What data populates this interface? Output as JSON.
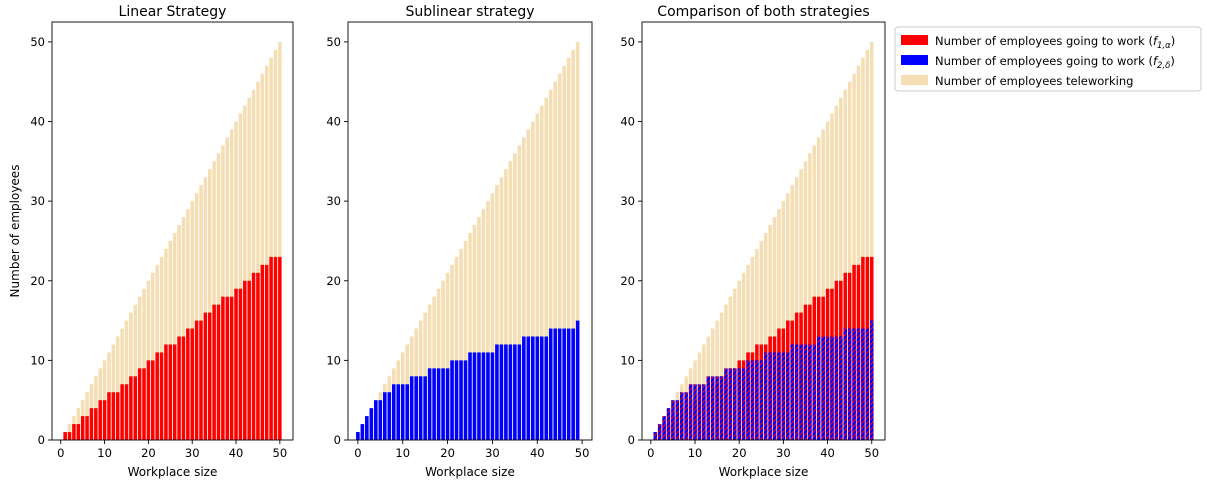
{
  "chart_data": [
    {
      "type": "bar",
      "title": "Linear Strategy",
      "xlabel": "Workplace size",
      "ylabel": "Number of employees",
      "xlim": [
        -2,
        53
      ],
      "ylim": [
        0,
        52.5
      ],
      "xticks": [
        0,
        10,
        20,
        30,
        40,
        50
      ],
      "yticks": [
        0,
        10,
        20,
        30,
        40,
        50
      ],
      "x": [
        1,
        2,
        3,
        4,
        5,
        6,
        7,
        8,
        9,
        10,
        11,
        12,
        13,
        14,
        15,
        16,
        17,
        18,
        19,
        20,
        21,
        22,
        23,
        24,
        25,
        26,
        27,
        28,
        29,
        30,
        31,
        32,
        33,
        34,
        35,
        36,
        37,
        38,
        39,
        40,
        41,
        42,
        43,
        44,
        45,
        46,
        47,
        48,
        49,
        50
      ],
      "series": [
        {
          "name": "Number of employees teleworking",
          "color": "#f5deb3",
          "stacked_total": true,
          "values": [
            1,
            2,
            3,
            4,
            5,
            6,
            7,
            8,
            9,
            10,
            11,
            12,
            13,
            14,
            15,
            16,
            17,
            18,
            19,
            20,
            21,
            22,
            23,
            24,
            25,
            26,
            27,
            28,
            29,
            30,
            31,
            32,
            33,
            34,
            35,
            36,
            37,
            38,
            39,
            40,
            41,
            42,
            43,
            44,
            45,
            46,
            47,
            48,
            49,
            50
          ]
        },
        {
          "name": "Number of employees going to work (f1,α)",
          "color": "#ff0000",
          "values": [
            1,
            1,
            2,
            2,
            3,
            3,
            4,
            4,
            5,
            5,
            6,
            6,
            6,
            7,
            7,
            8,
            8,
            9,
            9,
            10,
            10,
            11,
            11,
            12,
            12,
            12,
            13,
            13,
            14,
            14,
            15,
            15,
            16,
            16,
            17,
            17,
            18,
            18,
            18,
            19,
            19,
            20,
            20,
            21,
            21,
            22,
            22,
            23,
            23,
            23
          ]
        }
      ]
    },
    {
      "type": "bar",
      "title": "Sublinear strategy",
      "xlabel": "Workplace size",
      "xlim": [
        -2.2,
        52.2
      ],
      "ylim": [
        0,
        52.5
      ],
      "xticks": [
        0,
        10,
        20,
        30,
        40,
        50
      ],
      "yticks": [
        0,
        10,
        20,
        30,
        40,
        50
      ],
      "x": [
        0,
        1,
        2,
        3,
        4,
        5,
        6,
        7,
        8,
        9,
        10,
        11,
        12,
        13,
        14,
        15,
        16,
        17,
        18,
        19,
        20,
        21,
        22,
        23,
        24,
        25,
        26,
        27,
        28,
        29,
        30,
        31,
        32,
        33,
        34,
        35,
        36,
        37,
        38,
        39,
        40,
        41,
        42,
        43,
        44,
        45,
        46,
        47,
        48,
        49
      ],
      "series": [
        {
          "name": "Number of employees teleworking",
          "color": "#f5deb3",
          "stacked_total": true,
          "values": [
            1,
            2,
            3,
            4,
            5,
            6,
            7,
            8,
            9,
            10,
            11,
            12,
            13,
            14,
            15,
            16,
            17,
            18,
            19,
            20,
            21,
            22,
            23,
            24,
            25,
            26,
            27,
            28,
            29,
            30,
            31,
            32,
            33,
            34,
            35,
            36,
            37,
            38,
            39,
            40,
            41,
            42,
            43,
            44,
            45,
            46,
            47,
            48,
            49,
            50
          ]
        },
        {
          "name": "Number of employees going to work (f2,δ)",
          "color": "#0000ff",
          "values": [
            1,
            2,
            3,
            4,
            5,
            5,
            6,
            6,
            7,
            7,
            7,
            7,
            8,
            8,
            8,
            8,
            9,
            9,
            9,
            9,
            9,
            10,
            10,
            10,
            10,
            11,
            11,
            11,
            11,
            11,
            11,
            12,
            12,
            12,
            12,
            12,
            12,
            13,
            13,
            13,
            13,
            13,
            13,
            14,
            14,
            14,
            14,
            14,
            14,
            15
          ]
        }
      ]
    },
    {
      "type": "bar",
      "title": "Comparison of both strategies",
      "xlabel": "Workplace size",
      "xlim": [
        -2,
        53
      ],
      "ylim": [
        0,
        52.5
      ],
      "xticks": [
        0,
        10,
        20,
        30,
        40,
        50
      ],
      "yticks": [
        0,
        10,
        20,
        30,
        40,
        50
      ],
      "x": [
        1,
        2,
        3,
        4,
        5,
        6,
        7,
        8,
        9,
        10,
        11,
        12,
        13,
        14,
        15,
        16,
        17,
        18,
        19,
        20,
        21,
        22,
        23,
        24,
        25,
        26,
        27,
        28,
        29,
        30,
        31,
        32,
        33,
        34,
        35,
        36,
        37,
        38,
        39,
        40,
        41,
        42,
        43,
        44,
        45,
        46,
        47,
        48,
        49,
        50
      ],
      "legend_position": "outside top-right",
      "series": [
        {
          "name": "Number of employees teleworking",
          "color": "#f5deb3",
          "stacked_total": true,
          "values": [
            1,
            2,
            3,
            4,
            5,
            6,
            7,
            8,
            9,
            10,
            11,
            12,
            13,
            14,
            15,
            16,
            17,
            18,
            19,
            20,
            21,
            22,
            23,
            24,
            25,
            26,
            27,
            28,
            29,
            30,
            31,
            32,
            33,
            34,
            35,
            36,
            37,
            38,
            39,
            40,
            41,
            42,
            43,
            44,
            45,
            46,
            47,
            48,
            49,
            50
          ]
        },
        {
          "name": "Number of employees going to work (f1,α)",
          "color": "#ff0000",
          "values": [
            1,
            1,
            2,
            2,
            3,
            3,
            4,
            4,
            5,
            5,
            6,
            6,
            6,
            7,
            7,
            8,
            8,
            9,
            9,
            10,
            10,
            11,
            11,
            12,
            12,
            12,
            13,
            13,
            14,
            14,
            15,
            15,
            16,
            16,
            17,
            17,
            18,
            18,
            18,
            19,
            19,
            20,
            20,
            21,
            21,
            22,
            22,
            23,
            23,
            23
          ]
        },
        {
          "name": "Number of employees going to work (f2,δ)",
          "color": "#0000ff",
          "hatched": true,
          "values": [
            1,
            2,
            3,
            4,
            5,
            5,
            6,
            6,
            7,
            7,
            7,
            7,
            8,
            8,
            8,
            8,
            9,
            9,
            9,
            9,
            9,
            10,
            10,
            10,
            10,
            11,
            11,
            11,
            11,
            11,
            11,
            12,
            12,
            12,
            12,
            12,
            12,
            13,
            13,
            13,
            13,
            13,
            13,
            14,
            14,
            14,
            14,
            14,
            14,
            15
          ]
        }
      ]
    }
  ],
  "legend": {
    "items": [
      {
        "prefix": "Number of employees going to work (",
        "f": "f",
        "sub": "1,α",
        "suffix": ")",
        "color": "#ff0000"
      },
      {
        "prefix": "Number of employees going to work (",
        "f": "f",
        "sub": "2,δ",
        "suffix": ")",
        "color": "#0000ff"
      },
      {
        "prefix": "Number of employees teleworking",
        "f": "",
        "sub": "",
        "suffix": "",
        "color": "#f5deb3"
      }
    ]
  }
}
